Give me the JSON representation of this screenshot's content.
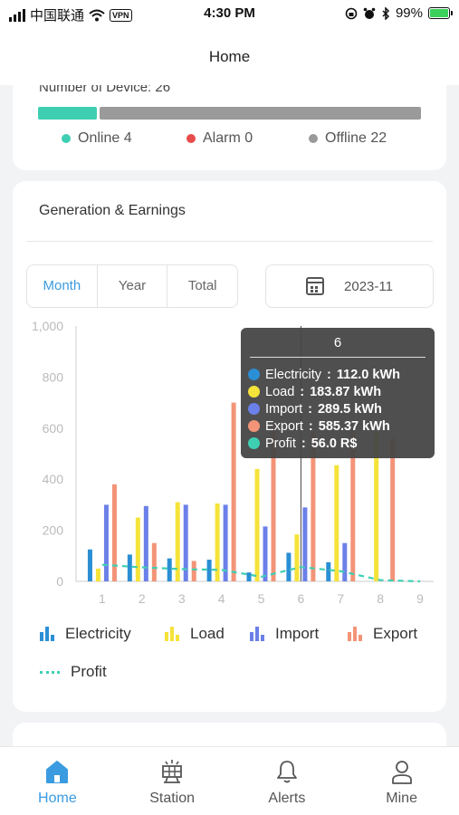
{
  "status_bar": {
    "carrier": "中国联通",
    "vpn": "VPN",
    "time": "4:30 PM",
    "battery": "99%"
  },
  "header": {
    "title": "Home"
  },
  "devices": {
    "title": "Number of Device: 26",
    "segments": [
      {
        "label": "Online",
        "count": 4,
        "color": "#3ecfb3"
      },
      {
        "label": "Alarm",
        "count": 0,
        "color": "#e84c4c"
      },
      {
        "label": "Offline",
        "count": 22,
        "color": "#9a9a9a"
      }
    ],
    "legend": [
      {
        "text": "Online 4",
        "color": "#3ecfb3"
      },
      {
        "text": "Alarm 0",
        "color": "#e84c4c"
      },
      {
        "text": "Offline 22",
        "color": "#9a9a9a"
      }
    ]
  },
  "generation": {
    "title": "Generation & Earnings",
    "tabs": [
      "Month",
      "Year",
      "Total"
    ],
    "active_tab": "Month",
    "date": "2023-11",
    "tooltip": {
      "title": "6",
      "rows": [
        {
          "label": "Electricity",
          "value": "112.0 kWh",
          "color": "#2a8fd4"
        },
        {
          "label": "Load",
          "value": "183.87 kWh",
          "color": "#f5e33a"
        },
        {
          "label": "Import",
          "value": "289.5 kWh",
          "color": "#6b80e8"
        },
        {
          "label": "Export",
          "value": "585.37 kWh",
          "color": "#f39478"
        },
        {
          "label": "Profit",
          "value": "56.0 R$",
          "color": "#3ecfb3"
        }
      ]
    },
    "legend": [
      {
        "name": "Electricity",
        "kind": "bar",
        "color": "#2a8fd4"
      },
      {
        "name": "Load",
        "kind": "bar",
        "color": "#f5e33a"
      },
      {
        "name": "Import",
        "kind": "bar",
        "color": "#6b80e8"
      },
      {
        "name": "Export",
        "kind": "bar",
        "color": "#f39478"
      },
      {
        "name": "Profit",
        "kind": "dash",
        "color": "#3ecfb3"
      }
    ]
  },
  "chart_data": {
    "type": "bar",
    "categories": [
      "1",
      "2",
      "3",
      "4",
      "5",
      "6",
      "7",
      "8",
      "9"
    ],
    "ylim": [
      0,
      1000
    ],
    "yticks": [
      "0",
      "200",
      "400",
      "600",
      "800",
      "1,000"
    ],
    "grid": false,
    "selected_category": "6",
    "series": [
      {
        "name": "Electricity",
        "color": "#2a8fd4",
        "values": [
          125,
          105,
          90,
          85,
          35,
          112,
          75,
          0,
          0
        ]
      },
      {
        "name": "Load",
        "color": "#f5e33a",
        "values": [
          50,
          250,
          310,
          305,
          440,
          183.87,
          455,
          580,
          0
        ]
      },
      {
        "name": "Import",
        "color": "#6b80e8",
        "values": [
          300,
          295,
          300,
          300,
          215,
          289.5,
          150,
          0,
          0
        ]
      },
      {
        "name": "Export",
        "color": "#f39478",
        "values": [
          380,
          150,
          80,
          700,
          600,
          585.37,
          600,
          560,
          0
        ]
      },
      {
        "name": "Profit",
        "type": "line",
        "color": "#3ecfb3",
        "values": [
          65,
          55,
          48,
          45,
          18,
          56,
          40,
          5,
          0
        ]
      }
    ]
  },
  "tabbar": {
    "items": [
      {
        "label": "Home",
        "icon": "home-icon",
        "active": true
      },
      {
        "label": "Station",
        "icon": "station-icon",
        "active": false
      },
      {
        "label": "Alerts",
        "icon": "bell-icon",
        "active": false
      },
      {
        "label": "Mine",
        "icon": "user-icon",
        "active": false
      }
    ]
  }
}
